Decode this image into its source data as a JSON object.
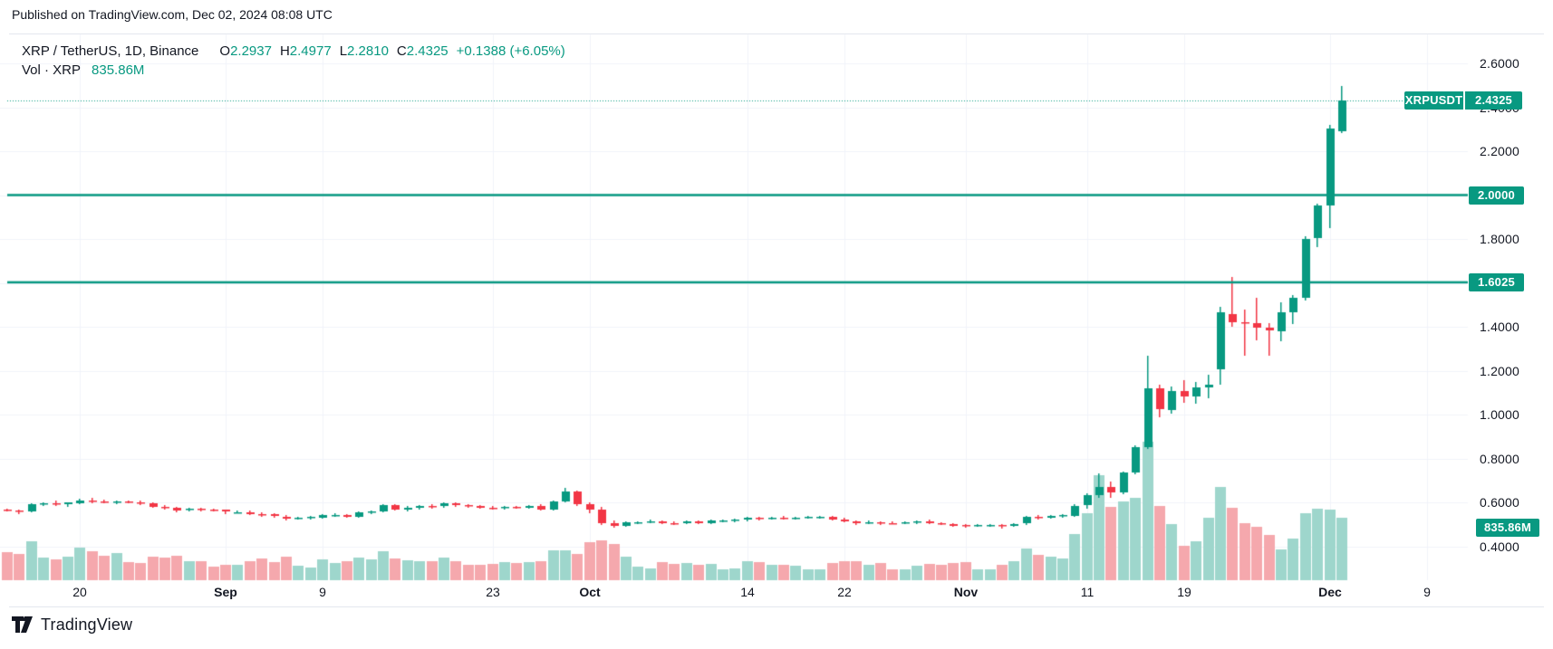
{
  "published_line": "Published on TradingView.com, Dec 02, 2024 08:08 UTC",
  "legend": {
    "symbol_title": "XRP / TetherUS, 1D, Binance",
    "o_label": "O",
    "o_value": "2.2937",
    "h_label": "H",
    "h_value": "2.4977",
    "l_label": "L",
    "l_value": "2.2810",
    "c_label": "C",
    "c_value": "2.4325",
    "change": "+0.1388 (+6.05%)",
    "vol_label": "Vol · XRP",
    "vol_value": "835.86M"
  },
  "brand": "TradingView",
  "price_axis": {
    "ticks": [
      {
        "label": "2.6000",
        "price": 2.6
      },
      {
        "label": "2.4000",
        "price": 2.4
      },
      {
        "label": "2.2000",
        "price": 2.2
      },
      {
        "label": "2.0000",
        "price": 2.0
      },
      {
        "label": "1.8000",
        "price": 1.8
      },
      {
        "label": "1.6000",
        "price": 1.6
      },
      {
        "label": "1.4000",
        "price": 1.4
      },
      {
        "label": "1.2000",
        "price": 1.2
      },
      {
        "label": "1.0000",
        "price": 1.0
      },
      {
        "label": "0.8000",
        "price": 0.8
      },
      {
        "label": "0.6000",
        "price": 0.6
      },
      {
        "label": "0.4000",
        "price": 0.4
      }
    ],
    "last_price_badge": {
      "symbol": "XRPUSDT",
      "value": "2.4325",
      "price": 2.4325
    },
    "volume_badge": {
      "value": "835.86M"
    }
  },
  "time_axis": {
    "labels": [
      {
        "text": "20",
        "i": 6,
        "bold": false
      },
      {
        "text": "Sep",
        "i": 18,
        "bold": true
      },
      {
        "text": "9",
        "i": 26,
        "bold": false
      },
      {
        "text": "23",
        "i": 40,
        "bold": false
      },
      {
        "text": "Oct",
        "i": 48,
        "bold": true
      },
      {
        "text": "14",
        "i": 61,
        "bold": false
      },
      {
        "text": "22",
        "i": 69,
        "bold": false
      },
      {
        "text": "Nov",
        "i": 79,
        "bold": true
      },
      {
        "text": "11",
        "i": 89,
        "bold": false
      },
      {
        "text": "19",
        "i": 97,
        "bold": false
      },
      {
        "text": "Dec",
        "i": 109,
        "bold": true
      },
      {
        "text": "9",
        "i": 117,
        "bold": false
      }
    ]
  },
  "colors": {
    "up": "#089981",
    "down": "#f23645",
    "vol_up": "#9ed6cc",
    "vol_down": "#f5a8ad",
    "grid": "#f0f3fa",
    "text": "#131722",
    "separator": "#e4e7ee",
    "badge_text": "#ffffff"
  },
  "chart_data": {
    "type": "candlestick+volume",
    "title": "XRP / TetherUS, 1D, Binance",
    "interval": "1D",
    "start_date": "2024-08-14",
    "ylim": [
      0.4,
      2.6
    ],
    "last_price": 2.4325,
    "current_volume_label": "835.86M",
    "levels": [
      {
        "value": "2.0000",
        "price": 2.0
      },
      {
        "value": "1.6025",
        "price": 1.6025
      }
    ],
    "ohlcv_note": "per-day [open, high, low, close, volume_millions], daily from start_date to 2024-12-02",
    "candles": [
      [
        0.566,
        0.573,
        0.559,
        0.562,
        380
      ],
      [
        0.562,
        0.568,
        0.547,
        0.557,
        350
      ],
      [
        0.557,
        0.596,
        0.553,
        0.591,
        520
      ],
      [
        0.591,
        0.602,
        0.585,
        0.594,
        300
      ],
      [
        0.594,
        0.608,
        0.582,
        0.588,
        280
      ],
      [
        0.588,
        0.6,
        0.581,
        0.598,
        310
      ],
      [
        0.598,
        0.616,
        0.591,
        0.61,
        430
      ],
      [
        0.61,
        0.619,
        0.597,
        0.606,
        390
      ],
      [
        0.606,
        0.612,
        0.594,
        0.6,
        330
      ],
      [
        0.6,
        0.61,
        0.592,
        0.604,
        360
      ],
      [
        0.604,
        0.609,
        0.595,
        0.601,
        240
      ],
      [
        0.601,
        0.607,
        0.589,
        0.596,
        230
      ],
      [
        0.596,
        0.601,
        0.575,
        0.58,
        310
      ],
      [
        0.58,
        0.587,
        0.568,
        0.576,
        300
      ],
      [
        0.576,
        0.581,
        0.556,
        0.565,
        330
      ],
      [
        0.565,
        0.576,
        0.559,
        0.571,
        260
      ],
      [
        0.571,
        0.575,
        0.559,
        0.567,
        250
      ],
      [
        0.567,
        0.572,
        0.557,
        0.565,
        180
      ],
      [
        0.565,
        0.569,
        0.548,
        0.555,
        200
      ],
      [
        0.555,
        0.562,
        0.549,
        0.556,
        210
      ],
      [
        0.556,
        0.561,
        0.542,
        0.548,
        260
      ],
      [
        0.548,
        0.555,
        0.533,
        0.545,
        290
      ],
      [
        0.545,
        0.55,
        0.531,
        0.536,
        240
      ],
      [
        0.536,
        0.541,
        0.518,
        0.527,
        320
      ],
      [
        0.527,
        0.534,
        0.521,
        0.53,
        190
      ],
      [
        0.53,
        0.537,
        0.523,
        0.532,
        170
      ],
      [
        0.532,
        0.547,
        0.527,
        0.543,
        280
      ],
      [
        0.543,
        0.549,
        0.535,
        0.544,
        230
      ],
      [
        0.544,
        0.548,
        0.529,
        0.535,
        260
      ],
      [
        0.535,
        0.558,
        0.531,
        0.555,
        300
      ],
      [
        0.555,
        0.564,
        0.548,
        0.56,
        280
      ],
      [
        0.56,
        0.593,
        0.555,
        0.588,
        390
      ],
      [
        0.588,
        0.592,
        0.564,
        0.569,
        290
      ],
      [
        0.569,
        0.582,
        0.56,
        0.577,
        270
      ],
      [
        0.577,
        0.589,
        0.569,
        0.584,
        260
      ],
      [
        0.584,
        0.59,
        0.57,
        0.58,
        250
      ],
      [
        0.58,
        0.598,
        0.575,
        0.594,
        300
      ],
      [
        0.594,
        0.6,
        0.58,
        0.587,
        260
      ],
      [
        0.587,
        0.593,
        0.577,
        0.584,
        200
      ],
      [
        0.584,
        0.589,
        0.571,
        0.577,
        210
      ],
      [
        0.577,
        0.585,
        0.568,
        0.574,
        220
      ],
      [
        0.574,
        0.584,
        0.568,
        0.58,
        240
      ],
      [
        0.58,
        0.585,
        0.57,
        0.575,
        230
      ],
      [
        0.575,
        0.587,
        0.57,
        0.583,
        240
      ],
      [
        0.583,
        0.59,
        0.561,
        0.568,
        250
      ],
      [
        0.568,
        0.608,
        0.563,
        0.605,
        400
      ],
      [
        0.605,
        0.668,
        0.598,
        0.649,
        400
      ],
      [
        0.649,
        0.652,
        0.585,
        0.592,
        350
      ],
      [
        0.592,
        0.598,
        0.549,
        0.569,
        510
      ],
      [
        0.569,
        0.578,
        0.495,
        0.507,
        530
      ],
      [
        0.507,
        0.518,
        0.485,
        0.493,
        480
      ],
      [
        0.493,
        0.512,
        0.488,
        0.508,
        315
      ],
      [
        0.508,
        0.515,
        0.5,
        0.511,
        180
      ],
      [
        0.511,
        0.52,
        0.504,
        0.514,
        160
      ],
      [
        0.514,
        0.518,
        0.501,
        0.506,
        240
      ],
      [
        0.506,
        0.512,
        0.498,
        0.503,
        220
      ],
      [
        0.503,
        0.517,
        0.499,
        0.513,
        230
      ],
      [
        0.513,
        0.517,
        0.501,
        0.505,
        210
      ],
      [
        0.505,
        0.521,
        0.501,
        0.517,
        220
      ],
      [
        0.517,
        0.523,
        0.51,
        0.518,
        150
      ],
      [
        0.518,
        0.525,
        0.511,
        0.52,
        160
      ],
      [
        0.52,
        0.532,
        0.514,
        0.528,
        250
      ],
      [
        0.528,
        0.534,
        0.517,
        0.526,
        240
      ],
      [
        0.526,
        0.536,
        0.52,
        0.531,
        200
      ],
      [
        0.531,
        0.537,
        0.521,
        0.529,
        210
      ],
      [
        0.529,
        0.536,
        0.523,
        0.531,
        190
      ],
      [
        0.531,
        0.537,
        0.524,
        0.532,
        140
      ],
      [
        0.532,
        0.539,
        0.525,
        0.533,
        150
      ],
      [
        0.533,
        0.537,
        0.516,
        0.522,
        230
      ],
      [
        0.522,
        0.528,
        0.508,
        0.513,
        250
      ],
      [
        0.513,
        0.519,
        0.498,
        0.505,
        260
      ],
      [
        0.505,
        0.516,
        0.5,
        0.511,
        200
      ],
      [
        0.511,
        0.515,
        0.497,
        0.506,
        230
      ],
      [
        0.506,
        0.512,
        0.499,
        0.505,
        150
      ],
      [
        0.505,
        0.513,
        0.5,
        0.508,
        140
      ],
      [
        0.508,
        0.519,
        0.502,
        0.514,
        190
      ],
      [
        0.514,
        0.521,
        0.501,
        0.506,
        220
      ],
      [
        0.506,
        0.511,
        0.495,
        0.502,
        210
      ],
      [
        0.502,
        0.507,
        0.489,
        0.495,
        230
      ],
      [
        0.495,
        0.501,
        0.485,
        0.494,
        240
      ],
      [
        0.494,
        0.5,
        0.487,
        0.495,
        150
      ],
      [
        0.495,
        0.502,
        0.487,
        0.496,
        140
      ],
      [
        0.496,
        0.501,
        0.482,
        0.493,
        200
      ],
      [
        0.493,
        0.506,
        0.488,
        0.502,
        260
      ],
      [
        0.502,
        0.54,
        0.495,
        0.532,
        420
      ],
      [
        0.532,
        0.541,
        0.521,
        0.529,
        340
      ],
      [
        0.529,
        0.543,
        0.524,
        0.537,
        310
      ],
      [
        0.537,
        0.545,
        0.53,
        0.541,
        290
      ],
      [
        0.541,
        0.591,
        0.535,
        0.585,
        620
      ],
      [
        0.585,
        0.643,
        0.573,
        0.632,
        900
      ],
      [
        0.632,
        0.733,
        0.622,
        0.671,
        1400
      ],
      [
        0.671,
        0.696,
        0.62,
        0.645,
        980
      ],
      [
        0.645,
        0.742,
        0.636,
        0.735,
        1050
      ],
      [
        0.735,
        0.861,
        0.726,
        0.851,
        1100
      ],
      [
        0.851,
        1.268,
        0.842,
        1.118,
        1850
      ],
      [
        1.118,
        1.138,
        0.988,
        1.022,
        990
      ],
      [
        1.022,
        1.128,
        1.005,
        1.108,
        750
      ],
      [
        1.108,
        1.157,
        1.052,
        1.082,
        460
      ],
      [
        1.082,
        1.148,
        1.048,
        1.125,
        520
      ],
      [
        1.125,
        1.182,
        1.075,
        1.138,
        830
      ],
      [
        1.21,
        1.492,
        1.135,
        1.468,
        1250
      ],
      [
        1.458,
        1.625,
        1.398,
        1.42,
        970
      ],
      [
        1.42,
        1.478,
        1.27,
        1.415,
        760
      ],
      [
        1.415,
        1.532,
        1.34,
        1.395,
        710
      ],
      [
        1.395,
        1.418,
        1.27,
        1.382,
        600
      ],
      [
        1.382,
        1.512,
        1.332,
        1.468,
        410
      ],
      [
        1.468,
        1.545,
        1.412,
        1.532,
        560
      ],
      [
        1.532,
        1.812,
        1.521,
        1.802,
        900
      ],
      [
        1.802,
        1.962,
        1.762,
        1.952,
        950
      ],
      [
        1.952,
        2.318,
        1.848,
        2.302,
        940
      ],
      [
        2.2937,
        2.4977,
        2.281,
        2.4325,
        836
      ]
    ]
  }
}
